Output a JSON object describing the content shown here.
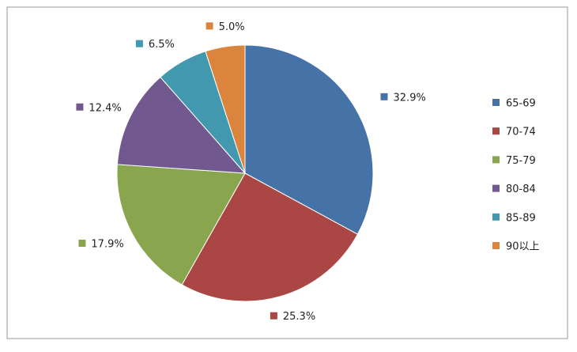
{
  "chart_data": {
    "type": "pie",
    "categories": [
      "65-69",
      "70-74",
      "75-79",
      "80-84",
      "85-89",
      "90以上"
    ],
    "values": [
      32.9,
      25.3,
      17.9,
      12.4,
      6.5,
      5.0
    ],
    "value_labels": [
      "32.9%",
      "25.3%",
      "17.9%",
      "12.4%",
      "6.5%",
      "5.0%"
    ],
    "colors": [
      "#4572a7",
      "#aa4643",
      "#89a54e",
      "#71588f",
      "#4198af",
      "#db843d"
    ],
    "legend": "right"
  }
}
